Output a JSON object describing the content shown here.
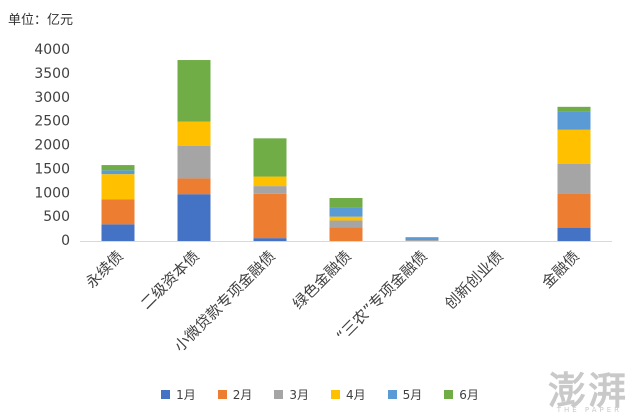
{
  "unit_label": "单位：亿元",
  "watermark": {
    "logo_text": "澎湃",
    "sub_text": "THE PAPER"
  },
  "chart_data": {
    "type": "bar",
    "stacked": true,
    "categories": [
      "永续债",
      "二级资本债",
      "小微贷款专项金融债",
      "绿色金融债",
      "“三农”专项金融债",
      "创新创业债",
      "金融债"
    ],
    "series": [
      {
        "name": "1月",
        "color": "#4472C4",
        "values": [
          350,
          980,
          60,
          0,
          0,
          0,
          280
        ]
      },
      {
        "name": "2月",
        "color": "#ED7D31",
        "values": [
          520,
          330,
          930,
          290,
          0,
          0,
          720
        ]
      },
      {
        "name": "3月",
        "color": "#A5A5A5",
        "values": [
          0,
          680,
          160,
          140,
          20,
          0,
          620
        ]
      },
      {
        "name": "4月",
        "color": "#FFC000",
        "values": [
          530,
          510,
          200,
          80,
          0,
          0,
          710
        ]
      },
      {
        "name": "5月",
        "color": "#5B9BD5",
        "values": [
          80,
          0,
          0,
          200,
          60,
          0,
          380
        ]
      },
      {
        "name": "6月",
        "color": "#70AD47",
        "values": [
          110,
          1290,
          800,
          190,
          0,
          0,
          100
        ]
      }
    ],
    "ylim": [
      0,
      4000
    ],
    "yticks": [
      0,
      500,
      1000,
      1500,
      2000,
      2500,
      3000,
      3500,
      4000
    ],
    "legend_position": "bottom",
    "grid": false
  }
}
